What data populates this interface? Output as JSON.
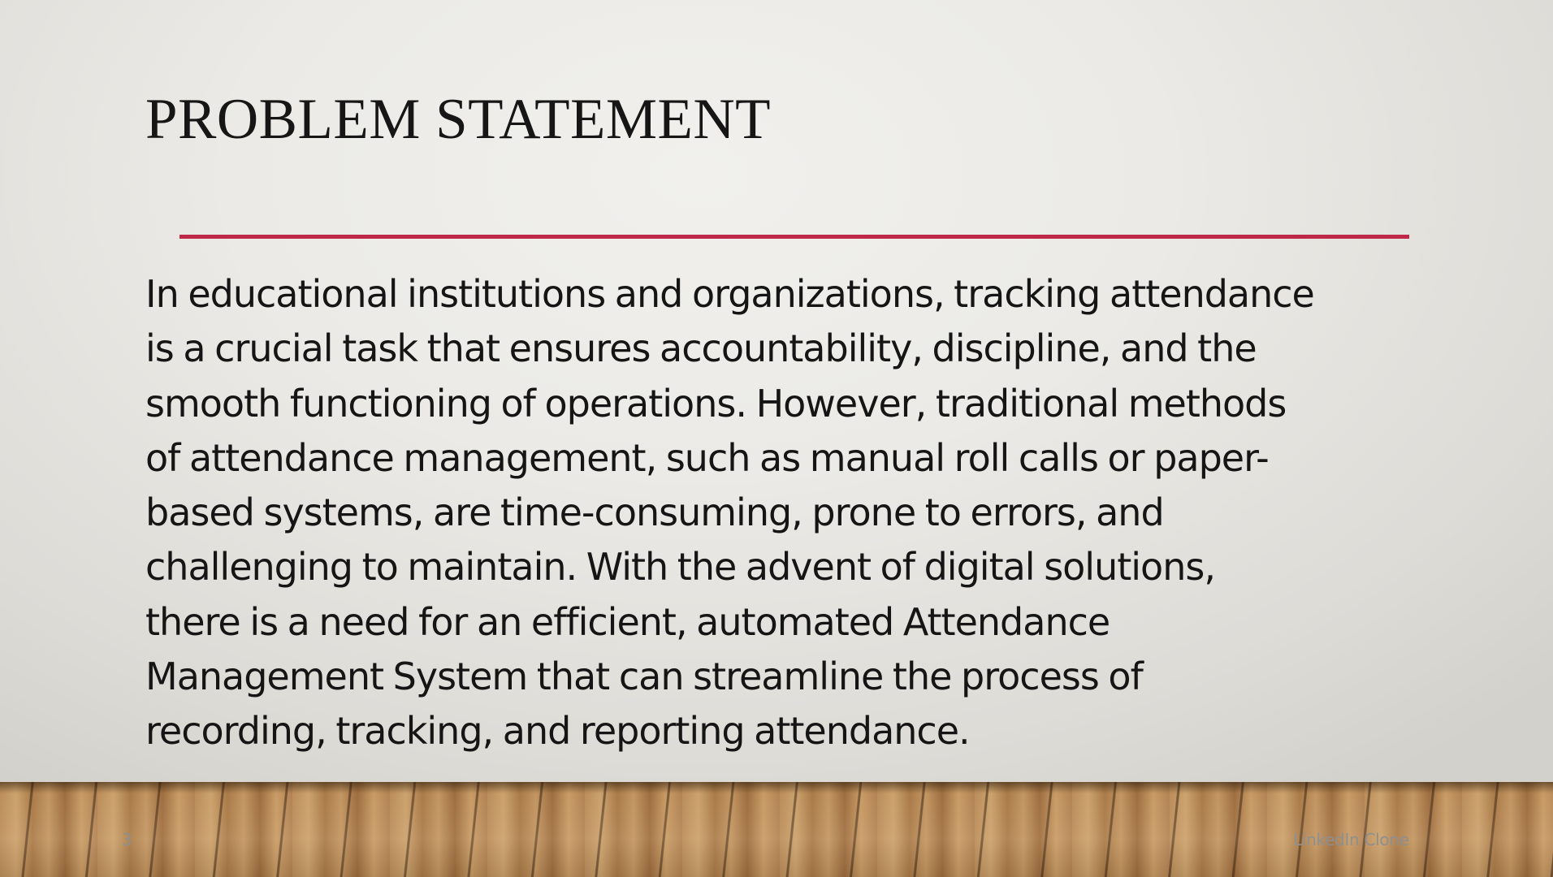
{
  "slide": {
    "title": "PROBLEM STATEMENT",
    "accent_color": "#c0284a",
    "body_lines": [
      "In educational institutions and organizations, tracking attendance",
      "is a crucial task that ensures accountability, discipline, and the",
      "smooth functioning of operations. However, traditional methods",
      "of attendance management, such as manual roll calls or paper-",
      "based systems, are time-consuming, prone to errors, and",
      "challenging to maintain. With the advent of digital solutions,",
      "there is a need for an efficient, automated Attendance",
      "Management System that can streamline the process of",
      "recording, tracking, and reporting attendance."
    ],
    "slide_number": "3",
    "footer": "LinkedIn Clone"
  }
}
